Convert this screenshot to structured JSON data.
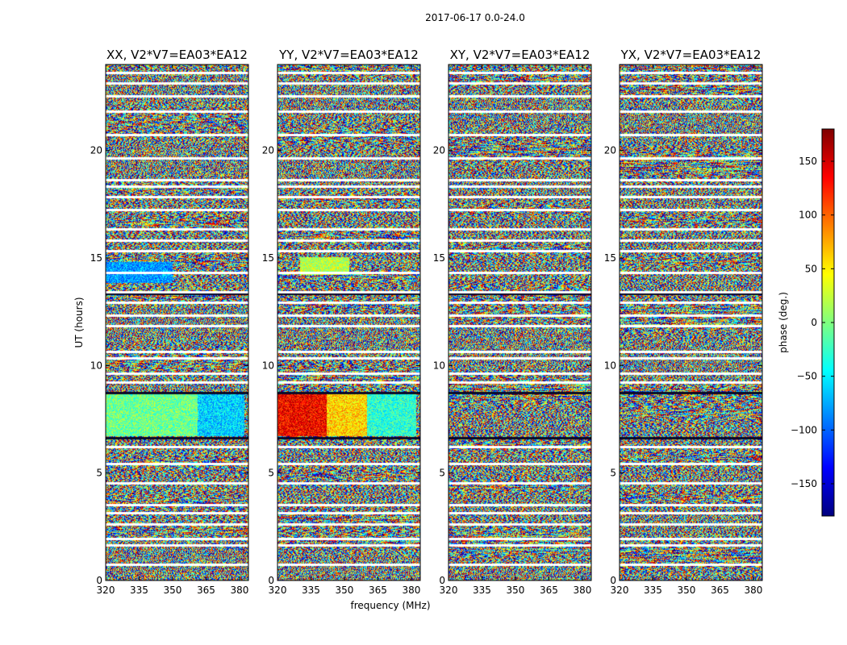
{
  "chart_data": {
    "type": "heatmap",
    "title": "2017-06-17 0.0-24.0",
    "xlabel": "frequency (MHz)",
    "ylabel": "UT (hours)",
    "xlim": [
      320,
      384
    ],
    "ylim": [
      0,
      24
    ],
    "x_ticks": [
      320,
      335,
      350,
      365,
      380
    ],
    "y_ticks": [
      0,
      5,
      10,
      15,
      20
    ],
    "colorbar": {
      "label": "phase (deg.)",
      "range": [
        -180,
        180
      ],
      "ticks": [
        -150,
        -100,
        -50,
        0,
        50,
        100,
        150
      ],
      "tick_labels": [
        "−150",
        "−100",
        "−50",
        "0",
        "50",
        "100",
        "150"
      ],
      "colormap": "jet"
    },
    "panels": [
      {
        "title": "XX, V2*V7=EA03*EA12",
        "features": [
          {
            "t0": 6.7,
            "t1": 8.7,
            "f0": 320,
            "f1": 361,
            "phase": -5
          },
          {
            "t0": 6.7,
            "t1": 8.7,
            "f0": 361,
            "f1": 382,
            "phase": -60
          },
          {
            "t0": 13.8,
            "t1": 14.8,
            "f0": 320,
            "f1": 350,
            "phase": -80
          }
        ]
      },
      {
        "title": "YY, V2*V7=EA03*EA12",
        "features": [
          {
            "t0": 6.7,
            "t1": 8.7,
            "f0": 320,
            "f1": 342,
            "phase": 135
          },
          {
            "t0": 6.7,
            "t1": 8.7,
            "f0": 342,
            "f1": 360,
            "phase": 60
          },
          {
            "t0": 6.7,
            "t1": 8.7,
            "f0": 360,
            "f1": 382,
            "phase": -30
          },
          {
            "t0": 14.2,
            "t1": 15.0,
            "f0": 330,
            "f1": 352,
            "phase": 20
          }
        ]
      },
      {
        "title": "XY, V2*V7=EA03*EA12",
        "features": []
      },
      {
        "title": "YX, V2*V7=EA03*EA12",
        "features": []
      }
    ],
    "flagged_rows_ut": [
      0.7,
      1.6,
      1.9,
      2.6,
      3.1,
      3.5,
      4.5,
      5.4,
      6.2,
      9.2,
      9.6,
      10.3,
      10.6,
      11.8,
      12.3,
      12.9,
      13.4,
      14.3,
      15.3,
      15.8,
      16.3,
      17.2,
      17.8,
      18.3,
      18.6,
      19.6,
      20.7,
      21.8,
      22.5,
      23.1,
      23.6
    ],
    "dark_rows_ut": [
      6.6,
      8.7,
      13.3
    ]
  }
}
